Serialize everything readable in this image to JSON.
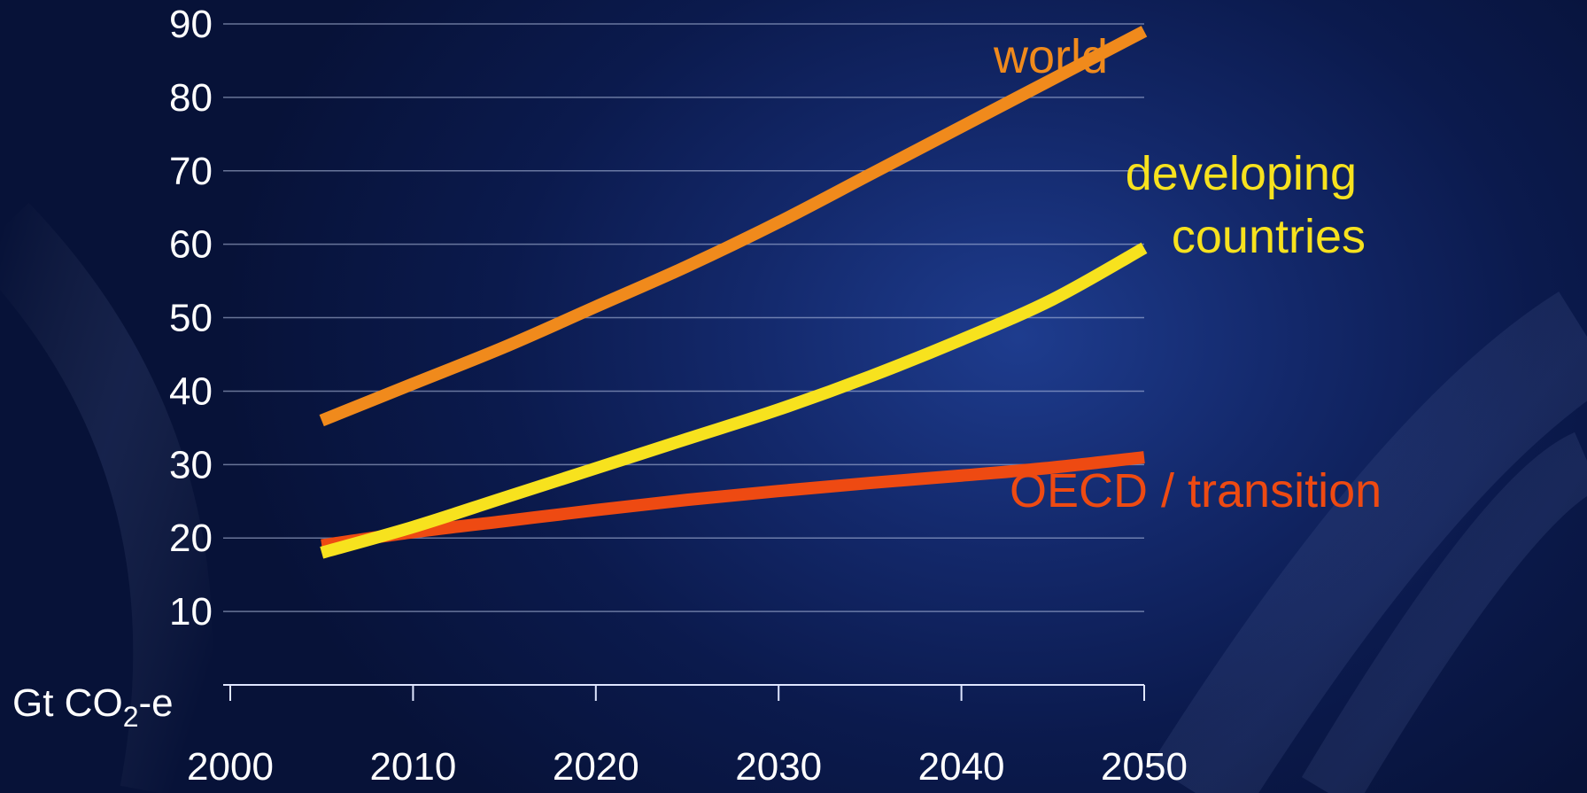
{
  "chart_data": {
    "type": "line",
    "title": "",
    "xlabel": "",
    "ylabel": "",
    "unit_label": {
      "base": "Gt CO",
      "subscript": "2",
      "suffix": "-e"
    },
    "xlim": [
      2000,
      2050
    ],
    "ylim": [
      0,
      90
    ],
    "x_ticks": [
      2000,
      2010,
      2020,
      2030,
      2040,
      2050
    ],
    "y_ticks": [
      10,
      20,
      30,
      40,
      50,
      60,
      70,
      80,
      90
    ],
    "grid": true,
    "series": [
      {
        "name": "world",
        "label_lines": [
          "world"
        ],
        "color": "#f08a1c",
        "x": [
          2005,
          2010,
          2015,
          2020,
          2025,
          2030,
          2035,
          2040,
          2045,
          2050
        ],
        "y": [
          36,
          41,
          46,
          51.5,
          57,
          63,
          69.5,
          76,
          82.5,
          89
        ]
      },
      {
        "name": "developing countries",
        "label_lines": [
          "developing",
          "countries"
        ],
        "color": "#f7e21e",
        "x": [
          2005,
          2010,
          2015,
          2020,
          2025,
          2030,
          2035,
          2040,
          2045,
          2050
        ],
        "y": [
          18,
          21.5,
          25.5,
          29.5,
          33.5,
          37.5,
          42,
          47,
          52.5,
          59.5
        ]
      },
      {
        "name": "OECD / transition",
        "label_lines": [
          "OECD / transition"
        ],
        "color": "#ee4a12",
        "x": [
          2005,
          2010,
          2015,
          2020,
          2025,
          2030,
          2035,
          2040,
          2045,
          2050
        ],
        "y": [
          19,
          20.8,
          22.3,
          23.8,
          25.2,
          26.4,
          27.5,
          28.5,
          29.6,
          31
        ]
      }
    ]
  }
}
